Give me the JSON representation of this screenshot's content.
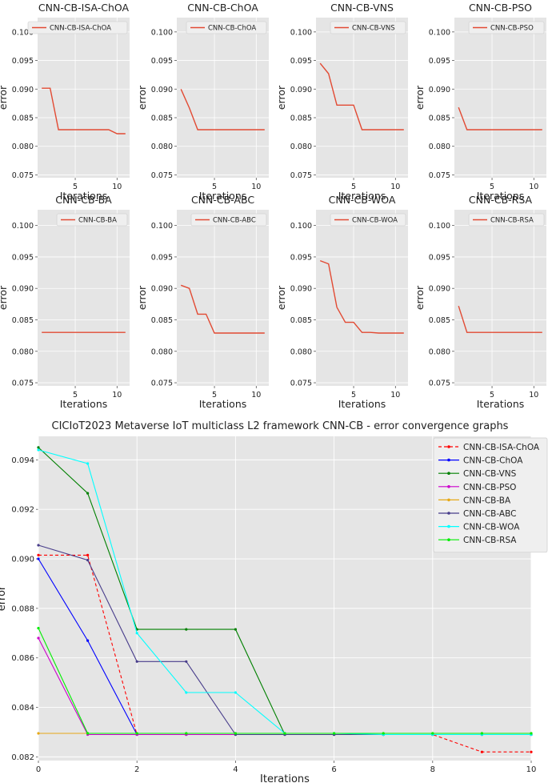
{
  "chart_data": [
    {
      "type": "line",
      "title": "CNN-CB-ISA-ChOA",
      "xlabel": "Iterations",
      "ylabel": "error",
      "legend": "CNN-CB-ISA-ChOA",
      "color": "#e24a33",
      "x": [
        1,
        2,
        3,
        4,
        5,
        6,
        7,
        8,
        9,
        10,
        11
      ],
      "values": [
        0.09015,
        0.09015,
        0.0829,
        0.0829,
        0.0829,
        0.0829,
        0.0829,
        0.0829,
        0.0829,
        0.0822,
        0.0822
      ],
      "xlim": [
        0.5,
        11.5
      ],
      "ylim": [
        0.0745,
        0.1025
      ],
      "xticks": [
        5,
        10
      ],
      "yticks": [
        0.075,
        0.08,
        0.085,
        0.09,
        0.095,
        0.1
      ],
      "ytick_labels": [
        "0.075",
        "0.080",
        "0.085",
        "0.090",
        "0.095",
        "0.100"
      ]
    },
    {
      "type": "line",
      "title": "CNN-CB-ChOA",
      "xlabel": "Iterations",
      "ylabel": "error",
      "legend": "CNN-CB-ChOA",
      "color": "#e24a33",
      "x": [
        1,
        2,
        3,
        4,
        5,
        6,
        7,
        8,
        9,
        10,
        11
      ],
      "values": [
        0.09,
        0.0867,
        0.0829,
        0.0829,
        0.0829,
        0.0829,
        0.0829,
        0.0829,
        0.0829,
        0.0829,
        0.0829
      ],
      "xlim": [
        0.5,
        11.5
      ],
      "ylim": [
        0.0745,
        0.1025
      ],
      "xticks": [
        5,
        10
      ],
      "yticks": [
        0.075,
        0.08,
        0.085,
        0.09,
        0.095,
        0.1
      ],
      "ytick_labels": [
        "0.075",
        "0.080",
        "0.085",
        "0.090",
        "0.095",
        "0.100"
      ]
    },
    {
      "type": "line",
      "title": "CNN-CB-VNS",
      "xlabel": "Iterations",
      "ylabel": "error",
      "legend": "CNN-CB-VNS",
      "color": "#e24a33",
      "x": [
        1,
        2,
        3,
        4,
        5,
        6,
        7,
        8,
        9,
        10,
        11
      ],
      "values": [
        0.0945,
        0.0927,
        0.0872,
        0.0872,
        0.0872,
        0.0829,
        0.0829,
        0.0829,
        0.0829,
        0.0829,
        0.0829
      ],
      "xlim": [
        0.5,
        11.5
      ],
      "ylim": [
        0.0745,
        0.1025
      ],
      "xticks": [
        5,
        10
      ],
      "yticks": [
        0.075,
        0.08,
        0.085,
        0.09,
        0.095,
        0.1
      ],
      "ytick_labels": [
        "0.075",
        "0.080",
        "0.085",
        "0.090",
        "0.095",
        "0.100"
      ]
    },
    {
      "type": "line",
      "title": "CNN-CB-PSO",
      "xlabel": "Iterations",
      "ylabel": "error",
      "legend": "CNN-CB-PSO",
      "color": "#e24a33",
      "x": [
        1,
        2,
        3,
        4,
        5,
        6,
        7,
        8,
        9,
        10,
        11
      ],
      "values": [
        0.0868,
        0.0829,
        0.0829,
        0.0829,
        0.0829,
        0.0829,
        0.0829,
        0.0829,
        0.0829,
        0.0829,
        0.0829
      ],
      "xlim": [
        0.5,
        11.5
      ],
      "ylim": [
        0.0745,
        0.1025
      ],
      "xticks": [
        5,
        10
      ],
      "yticks": [
        0.075,
        0.08,
        0.085,
        0.09,
        0.095,
        0.1
      ],
      "ytick_labels": [
        "0.075",
        "0.080",
        "0.085",
        "0.090",
        "0.095",
        "0.100"
      ]
    },
    {
      "type": "line",
      "title": "CNN-CB-BA",
      "xlabel": "Iterations",
      "ylabel": "error",
      "legend": "CNN-CB-BA",
      "color": "#e24a33",
      "x": [
        1,
        2,
        3,
        4,
        5,
        6,
        7,
        8,
        9,
        10,
        11
      ],
      "values": [
        0.083,
        0.083,
        0.083,
        0.083,
        0.083,
        0.083,
        0.083,
        0.083,
        0.083,
        0.083,
        0.083
      ],
      "xlim": [
        0.5,
        11.5
      ],
      "ylim": [
        0.0745,
        0.1025
      ],
      "xticks": [
        5,
        10
      ],
      "yticks": [
        0.075,
        0.08,
        0.085,
        0.09,
        0.095,
        0.1
      ],
      "ytick_labels": [
        "0.075",
        "0.080",
        "0.085",
        "0.090",
        "0.095",
        "0.100"
      ]
    },
    {
      "type": "line",
      "title": "CNN-CB-ABC",
      "xlabel": "Iterations",
      "ylabel": "error",
      "legend": "CNN-CB-ABC",
      "color": "#e24a33",
      "x": [
        1,
        2,
        3,
        4,
        5,
        6,
        7,
        8,
        9,
        10,
        11
      ],
      "values": [
        0.0905,
        0.09,
        0.0859,
        0.0859,
        0.0829,
        0.0829,
        0.0829,
        0.0829,
        0.0829,
        0.0829,
        0.0829
      ],
      "xlim": [
        0.5,
        11.5
      ],
      "ylim": [
        0.0745,
        0.1025
      ],
      "xticks": [
        5,
        10
      ],
      "yticks": [
        0.075,
        0.08,
        0.085,
        0.09,
        0.095,
        0.1
      ],
      "ytick_labels": [
        "0.075",
        "0.080",
        "0.085",
        "0.090",
        "0.095",
        "0.100"
      ]
    },
    {
      "type": "line",
      "title": "CNN-CB-WOA",
      "xlabel": "Iterations",
      "ylabel": "error",
      "legend": "CNN-CB-WOA",
      "color": "#e24a33",
      "x": [
        1,
        2,
        3,
        4,
        5,
        6,
        7,
        8,
        9,
        10,
        11
      ],
      "values": [
        0.0944,
        0.0939,
        0.087,
        0.0846,
        0.0846,
        0.083,
        0.083,
        0.0829,
        0.0829,
        0.0829,
        0.0829
      ],
      "xlim": [
        0.5,
        11.5
      ],
      "ylim": [
        0.0745,
        0.1025
      ],
      "xticks": [
        5,
        10
      ],
      "yticks": [
        0.075,
        0.08,
        0.085,
        0.09,
        0.095,
        0.1
      ],
      "ytick_labels": [
        "0.075",
        "0.080",
        "0.085",
        "0.090",
        "0.095",
        "0.100"
      ]
    },
    {
      "type": "line",
      "title": "CNN-CB-RSA",
      "xlabel": "Iterations",
      "ylabel": "error",
      "legend": "CNN-CB-RSA",
      "color": "#e24a33",
      "x": [
        1,
        2,
        3,
        4,
        5,
        6,
        7,
        8,
        9,
        10,
        11
      ],
      "values": [
        0.0872,
        0.083,
        0.083,
        0.083,
        0.083,
        0.083,
        0.083,
        0.083,
        0.083,
        0.083,
        0.083
      ],
      "xlim": [
        0.5,
        11.5
      ],
      "ylim": [
        0.0745,
        0.1025
      ],
      "xticks": [
        5,
        10
      ],
      "yticks": [
        0.075,
        0.08,
        0.085,
        0.09,
        0.095,
        0.1
      ],
      "ytick_labels": [
        "0.075",
        "0.080",
        "0.085",
        "0.090",
        "0.095",
        "0.100"
      ]
    },
    {
      "type": "line",
      "title": "CICIoT2023 Metaverse IoT multiclass L2 framework CNN-CB -  error convergence graphs",
      "xlabel": "Iterations",
      "ylabel": "error",
      "xlim": [
        0,
        10
      ],
      "ylim": [
        0.08185,
        0.09495
      ],
      "xticks": [
        0,
        2,
        4,
        6,
        8,
        10
      ],
      "xtick_labels": [
        "0",
        "2",
        "4",
        "6",
        "8",
        "10"
      ],
      "yticks": [
        0.082,
        0.084,
        0.086,
        0.088,
        0.09,
        0.092,
        0.094
      ],
      "ytick_labels": [
        "0.082",
        "0.084",
        "0.086",
        "0.088",
        "0.090",
        "0.092",
        "0.094"
      ],
      "legend_position": "top-right",
      "x": [
        0,
        1,
        2,
        3,
        4,
        5,
        6,
        7,
        8,
        9,
        10
      ],
      "series": [
        {
          "name": "CNN-CB-ISA-ChOA",
          "color": "#ff0000",
          "dashed": true,
          "values": [
            0.09015,
            0.09015,
            0.0829,
            0.0829,
            0.0829,
            0.0829,
            0.0829,
            0.0829,
            0.0829,
            0.0822,
            0.0822
          ]
        },
        {
          "name": "CNN-CB-ChOA",
          "color": "#0000ff",
          "dashed": false,
          "values": [
            0.09,
            0.0867,
            0.0829,
            0.0829,
            0.0829,
            0.0829,
            0.0829,
            0.0829,
            0.0829,
            0.0829,
            0.0829
          ]
        },
        {
          "name": "CNN-CB-VNS",
          "color": "#008000",
          "dashed": false,
          "values": [
            0.0945,
            0.09265,
            0.08715,
            0.08715,
            0.08715,
            0.0829,
            0.0829,
            0.0829,
            0.0829,
            0.0829,
            0.0829
          ]
        },
        {
          "name": "CNN-CB-PSO",
          "color": "#cc00cc",
          "dashed": false,
          "values": [
            0.0868,
            0.0829,
            0.0829,
            0.0829,
            0.0829,
            0.0829,
            0.0829,
            0.0829,
            0.0829,
            0.0829,
            0.0829
          ]
        },
        {
          "name": "CNN-CB-BA",
          "color": "#e6a817",
          "dashed": false,
          "values": [
            0.08295,
            0.08295,
            0.08295,
            0.08295,
            0.08295,
            0.08295,
            0.08295,
            0.08295,
            0.08295,
            0.08295,
            0.08295
          ]
        },
        {
          "name": "CNN-CB-ABC",
          "color": "#483d8b",
          "dashed": false,
          "values": [
            0.09055,
            0.08995,
            0.08585,
            0.08585,
            0.0829,
            0.0829,
            0.0829,
            0.0829,
            0.0829,
            0.0829,
            0.0829
          ]
        },
        {
          "name": "CNN-CB-WOA",
          "color": "#00ffff",
          "dashed": false,
          "values": [
            0.0944,
            0.09385,
            0.087,
            0.0846,
            0.0846,
            0.08295,
            0.08295,
            0.0829,
            0.0829,
            0.0829,
            0.0829
          ]
        },
        {
          "name": "CNN-CB-RSA",
          "color": "#00ee00",
          "dashed": false,
          "values": [
            0.0872,
            0.08295,
            0.08295,
            0.08295,
            0.08295,
            0.08295,
            0.08295,
            0.08295,
            0.08295,
            0.08295,
            0.08295
          ]
        }
      ]
    }
  ]
}
